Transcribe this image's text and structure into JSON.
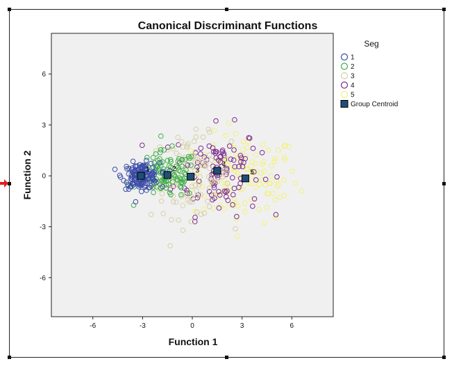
{
  "chart_data": {
    "type": "scatter",
    "title": "Canonical Discriminant Functions",
    "xlabel": "Function 1",
    "ylabel": "Function 2",
    "xlim": [
      -8.5,
      8.5
    ],
    "ylim": [
      -8.3,
      8.4
    ],
    "xticks": [
      -6,
      -3,
      0,
      3,
      6
    ],
    "yticks": [
      -6,
      -3,
      0,
      3,
      6
    ],
    "xtick_labels": [
      "-6",
      "-3",
      "0",
      "3",
      "6"
    ],
    "ytick_labels": [
      "-6",
      "-3",
      "0",
      "3",
      "6"
    ],
    "grid": false,
    "plot_background": "#f0f0f0",
    "legend": {
      "title": "Seg",
      "placement": "right",
      "centroid_label": "Group Centroid"
    },
    "series": [
      {
        "name": "1",
        "color": "#3b4ca8",
        "spread": [
          0.55,
          0.38
        ],
        "count": 140,
        "centroid": [
          -3.1,
          0.0
        ]
      },
      {
        "name": "2",
        "color": "#3fae49",
        "spread": [
          0.9,
          0.7
        ],
        "count": 110,
        "centroid": [
          -1.5,
          0.05
        ]
      },
      {
        "name": "3",
        "color": "#d6d0a8",
        "spread": [
          1.2,
          1.2
        ],
        "count": 110,
        "centroid": [
          -0.1,
          -0.05
        ]
      },
      {
        "name": "4",
        "color": "#7b2b8c",
        "spread": [
          1.3,
          1.3
        ],
        "count": 110,
        "centroid": [
          1.5,
          0.3
        ]
      },
      {
        "name": "5",
        "color": "#f2f27a",
        "spread": [
          1.6,
          1.3
        ],
        "count": 120,
        "centroid": [
          3.2,
          -0.15
        ]
      }
    ],
    "centroid_color": "#1f4e79"
  }
}
